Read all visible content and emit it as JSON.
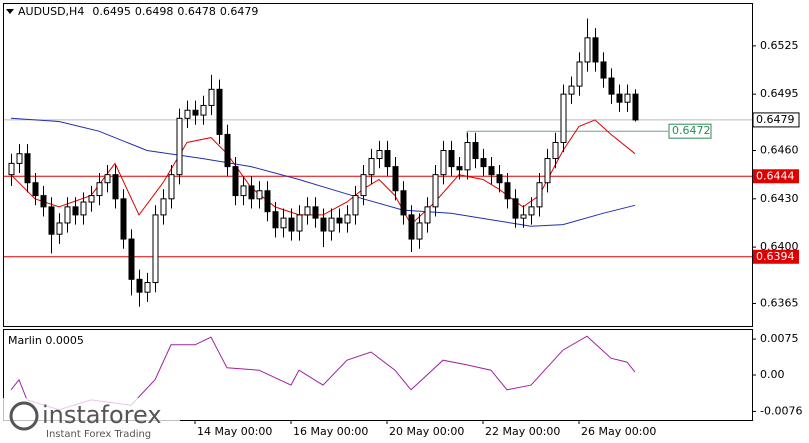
{
  "chart_data": {
    "type": "candlestick",
    "title": "AUDUSD,H4",
    "categories": [
      null,
      null,
      null,
      null,
      null,
      null,
      null,
      null,
      null,
      null,
      null,
      null,
      null,
      null,
      null,
      null,
      null,
      null,
      null,
      null,
      null,
      null,
      null,
      "14 May 00:00",
      null,
      null,
      null,
      null,
      null,
      null,
      null,
      null,
      null,
      null,
      null,
      "16 May 00:00",
      null,
      null,
      null,
      null,
      null,
      null,
      null,
      null,
      null,
      null,
      null,
      "20 May 00:00",
      null,
      null,
      null,
      null,
      null,
      null,
      null,
      null,
      null,
      null,
      null,
      "22 May 00:00",
      null,
      null,
      null,
      null,
      null,
      null,
      null,
      null,
      null,
      null,
      null,
      "26 May 00:00",
      null,
      null,
      null,
      null,
      null,
      null,
      null
    ],
    "open": [
      0.6445,
      0.6452,
      0.6458,
      0.644,
      0.6432,
      0.6425,
      0.6408,
      0.6415,
      0.6425,
      0.642,
      0.6428,
      0.6432,
      0.644,
      0.6445,
      0.643,
      0.6405,
      0.638,
      0.6372,
      0.6378,
      0.642,
      0.643,
      0.6445,
      0.648,
      0.6485,
      0.6482,
      0.6488,
      0.6498,
      0.647,
      0.645,
      0.6432,
      0.6438,
      0.643,
      0.6435,
      0.6422,
      0.6412,
      0.6418,
      0.641,
      0.642,
      0.6425,
      0.6418,
      0.641,
      0.6418,
      0.6415,
      0.642,
      0.6432,
      0.6445,
      0.6455,
      0.646,
      0.645,
      0.6435,
      0.642,
      0.6405,
      0.6415,
      0.6425,
      0.6445,
      0.646,
      0.645,
      0.6448,
      0.6465,
      0.6455,
      0.645,
      0.6445,
      0.644,
      0.643,
      0.6418,
      0.642,
      0.6425,
      0.644,
      0.6455,
      0.6465,
      0.6495,
      0.65,
      0.6515,
      0.653,
      0.6515,
      0.6505,
      0.6495,
      0.649,
      0.6495
    ],
    "high": [
      0.6458,
      0.6464,
      0.6464,
      0.6446,
      0.6438,
      0.6431,
      0.6421,
      0.6431,
      0.6431,
      0.6434,
      0.6438,
      0.6446,
      0.6451,
      0.6451,
      0.6436,
      0.6411,
      0.6386,
      0.6384,
      0.6426,
      0.6436,
      0.6451,
      0.6486,
      0.6491,
      0.6491,
      0.6494,
      0.6507,
      0.6504,
      0.6476,
      0.6456,
      0.6444,
      0.6444,
      0.6441,
      0.6441,
      0.6428,
      0.6424,
      0.6424,
      0.6426,
      0.6431,
      0.6431,
      0.6424,
      0.6424,
      0.6424,
      0.6426,
      0.6438,
      0.6451,
      0.6461,
      0.6466,
      0.6466,
      0.6456,
      0.6441,
      0.6426,
      0.6421,
      0.6431,
      0.6451,
      0.6466,
      0.6466,
      0.6456,
      0.6471,
      0.6471,
      0.6461,
      0.6456,
      0.6451,
      0.6446,
      0.6436,
      0.6426,
      0.6431,
      0.6446,
      0.6461,
      0.6471,
      0.6501,
      0.6506,
      0.6521,
      0.6542,
      0.6536,
      0.6521,
      0.6511,
      0.6501,
      0.6501,
      0.6498
    ],
    "low": [
      0.6438,
      0.6446,
      0.6434,
      0.6426,
      0.6419,
      0.6396,
      0.6402,
      0.6409,
      0.6414,
      0.6414,
      0.6422,
      0.6426,
      0.6434,
      0.6424,
      0.6399,
      0.637,
      0.6363,
      0.6366,
      0.6372,
      0.6414,
      0.6424,
      0.6439,
      0.6474,
      0.6476,
      0.6476,
      0.6482,
      0.6464,
      0.6444,
      0.6426,
      0.6426,
      0.6424,
      0.6424,
      0.6416,
      0.6406,
      0.6406,
      0.6404,
      0.6404,
      0.6414,
      0.6412,
      0.64,
      0.6404,
      0.6409,
      0.6409,
      0.6414,
      0.6426,
      0.6439,
      0.6449,
      0.6444,
      0.6429,
      0.6414,
      0.6397,
      0.6399,
      0.6409,
      0.6419,
      0.6439,
      0.6444,
      0.6442,
      0.6442,
      0.6449,
      0.6444,
      0.6439,
      0.6434,
      0.6424,
      0.6412,
      0.6412,
      0.6414,
      0.6419,
      0.6434,
      0.6449,
      0.6459,
      0.6489,
      0.6494,
      0.6509,
      0.6509,
      0.6499,
      0.6489,
      0.6484,
      0.6484,
      0.6478
    ],
    "close": [
      0.6452,
      0.6458,
      0.644,
      0.6432,
      0.6425,
      0.6408,
      0.6415,
      0.6425,
      0.642,
      0.6428,
      0.6432,
      0.644,
      0.6445,
      0.643,
      0.6405,
      0.638,
      0.6372,
      0.6378,
      0.642,
      0.643,
      0.6445,
      0.648,
      0.6485,
      0.6482,
      0.6488,
      0.6498,
      0.647,
      0.645,
      0.6432,
      0.6438,
      0.643,
      0.6435,
      0.6422,
      0.6412,
      0.6418,
      0.641,
      0.642,
      0.6425,
      0.6418,
      0.641,
      0.6418,
      0.6415,
      0.642,
      0.6432,
      0.6445,
      0.6455,
      0.646,
      0.645,
      0.6435,
      0.642,
      0.6405,
      0.6415,
      0.6425,
      0.6445,
      0.646,
      0.645,
      0.6448,
      0.6465,
      0.6455,
      0.645,
      0.6445,
      0.644,
      0.643,
      0.6418,
      0.642,
      0.6425,
      0.644,
      0.6455,
      0.6465,
      0.6495,
      0.65,
      0.6515,
      0.653,
      0.6515,
      0.6505,
      0.6495,
      0.649,
      0.6495,
      0.6479
    ],
    "ylim": [
      0.6351,
      0.6551
    ],
    "yticks": [
      0.6525,
      0.6495,
      {
        "value": 0.646,
        "label": "0.6460"
      },
      {
        "value": 0.643,
        "label": "0.6430"
      },
      {
        "value": 0.64,
        "label": "0.6400"
      },
      0.6365
    ],
    "lines": [
      {
        "color": "#e00000",
        "x": [
          0,
          3,
          6,
          10,
          13,
          16,
          19,
          22,
          25,
          27,
          30,
          33,
          36,
          39,
          42,
          44,
          46,
          48,
          50,
          53,
          56,
          59,
          61,
          64,
          66,
          69,
          71,
          73,
          75,
          78
        ],
        "values": [
          0.6445,
          0.643,
          0.6425,
          0.6432,
          0.6452,
          0.642,
          0.644,
          0.6465,
          0.6468,
          0.6458,
          0.6437,
          0.6425,
          0.642,
          0.642,
          0.6428,
          0.6436,
          0.6442,
          0.6432,
          0.6414,
          0.6428,
          0.6445,
          0.6442,
          0.6436,
          0.6425,
          0.6432,
          0.646,
          0.6475,
          0.6479,
          0.647,
          0.6458
        ]
      },
      {
        "color": "#1f2fb0",
        "x": [
          0,
          6,
          11,
          17,
          24,
          30,
          36,
          40,
          44,
          49,
          55,
          60,
          65,
          69,
          74,
          78
        ],
        "values": [
          0.648,
          0.6478,
          0.6472,
          0.646,
          0.6455,
          0.645,
          0.6442,
          0.6436,
          0.643,
          0.6423,
          0.6421,
          0.6417,
          0.6413,
          0.6414,
          0.6421,
          0.6426
        ]
      }
    ],
    "levels": [
      {
        "value": 0.6444,
        "color": "#e00000"
      },
      {
        "value": 0.6394,
        "color": "#e00000"
      }
    ],
    "trendline": {
      "value": 0.6472,
      "start": 57,
      "color": "#2e8b57"
    },
    "indicator": {
      "title": "Marlin 0.0005",
      "color": "#a020a0",
      "ylim": [
        -0.0094,
        0.0094
      ],
      "yticks": [
        0.0075,
        {
          "value": 0,
          "label": "0.00"
        },
        -0.0076
      ],
      "x": [
        0,
        1,
        2,
        6,
        10,
        15,
        18,
        20,
        23,
        25,
        27,
        31,
        35,
        36,
        39,
        42,
        45,
        48,
        50,
        54,
        57,
        60,
        62,
        65,
        69,
        72,
        75,
        77,
        78
      ],
      "values": [
        -0.0031,
        -0.001,
        -0.0052,
        -0.0073,
        -0.0052,
        -0.0063,
        -0.001,
        0.0063,
        0.0063,
        0.0079,
        0.0015,
        0.001,
        -0.0021,
        0.001,
        -0.0021,
        0.0031,
        0.0048,
        0.001,
        -0.0031,
        0.0031,
        0.0021,
        0.001,
        -0.0031,
        -0.0021,
        0.0052,
        0.0081,
        0.0035,
        0.0027,
        0.0006
      ]
    },
    "watermark": "instaforex",
    "watermark_sub": "Instant Forex Trading"
  }
}
